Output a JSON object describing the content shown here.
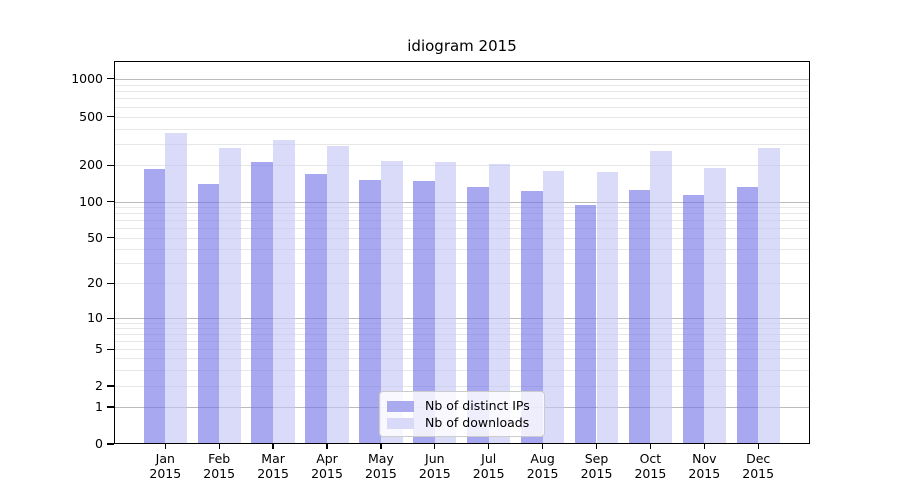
{
  "title": "idiogram 2015",
  "chart_data": {
    "type": "bar",
    "title": "idiogram 2015",
    "yscale": "symlog",
    "grid": true,
    "legend_position": "lower center",
    "x_year": "2015",
    "months": [
      "Jan",
      "Feb",
      "Mar",
      "Apr",
      "May",
      "Jun",
      "Jul",
      "Aug",
      "Sep",
      "Oct",
      "Nov",
      "Dec"
    ],
    "categories": [
      "Jan 2015",
      "Feb 2015",
      "Mar 2015",
      "Apr 2015",
      "May 2015",
      "Jun 2015",
      "Jul 2015",
      "Aug 2015",
      "Sep 2015",
      "Oct 2015",
      "Nov 2015",
      "Dec 2015"
    ],
    "y_tick_values": [
      0,
      1,
      2,
      5,
      10,
      20,
      50,
      100,
      200,
      500,
      1000
    ],
    "y_tick_labels": [
      "0",
      "1",
      "2",
      "5",
      "10",
      "20",
      "50",
      "100",
      "200",
      "500",
      "1000"
    ],
    "ylim": [
      0,
      1400
    ],
    "series": [
      {
        "name": "Nb of distinct IPs",
        "color": "#aaaaee",
        "fill": "rgba(115,115,230,0.62)",
        "values": [
          185,
          140,
          215,
          170,
          150,
          148,
          131,
          123,
          93,
          125,
          114,
          132
        ]
      },
      {
        "name": "Nb of downloads",
        "color": "#d9d9f9",
        "fill": "rgba(195,195,245,0.62)",
        "values": [
          365,
          275,
          320,
          290,
          218,
          215,
          205,
          180,
          175,
          260,
          190,
          275
        ]
      }
    ],
    "gridline_major_color": "#bbbbbb",
    "gridline_minor_color": "#e7e7e7"
  }
}
